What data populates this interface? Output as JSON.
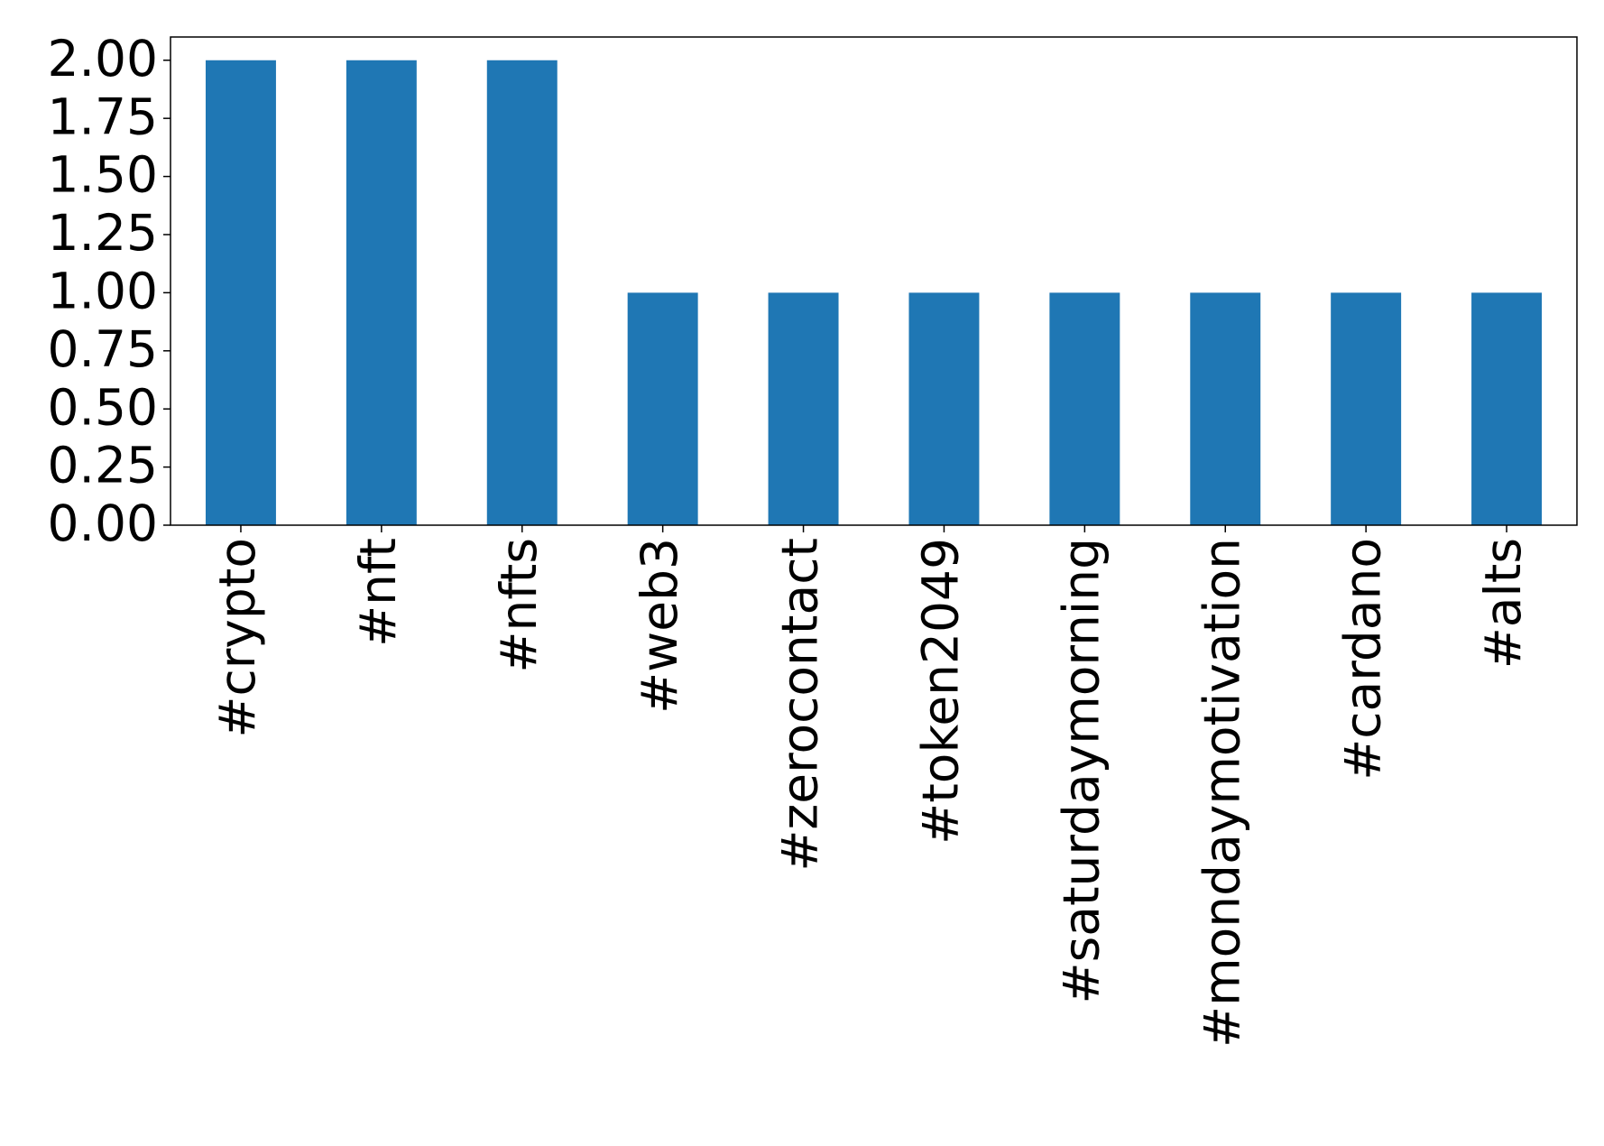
{
  "chart_data": {
    "type": "bar",
    "categories": [
      "#crypto",
      "#nft",
      "#nfts",
      "#web3",
      "#zerocontact",
      "#token2049",
      "#saturdaymorning",
      "#mondaymotivation",
      "#cardano",
      "#alts"
    ],
    "values": [
      2,
      2,
      2,
      1,
      1,
      1,
      1,
      1,
      1,
      1
    ],
    "color": "#1f77b4",
    "ylim": [
      0,
      2.1
    ],
    "yticks": [
      {
        "value": 0,
        "label": "0.00"
      },
      {
        "value": 0.25,
        "label": "0.25"
      },
      {
        "value": 0.5,
        "label": "0.50"
      },
      {
        "value": 0.75,
        "label": "0.75"
      },
      {
        "value": 1,
        "label": "1.00"
      },
      {
        "value": 1.25,
        "label": "1.25"
      },
      {
        "value": 1.5,
        "label": "1.50"
      },
      {
        "value": 1.75,
        "label": "1.75"
      },
      {
        "value": 2,
        "label": "2.00"
      }
    ],
    "grid": false
  }
}
